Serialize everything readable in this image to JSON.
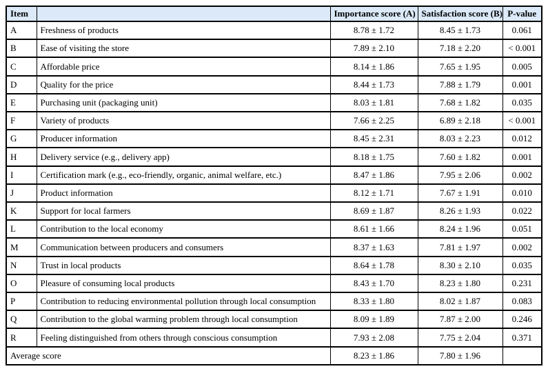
{
  "colors": {
    "header_bg": "#dbe9f8",
    "border": "#000000",
    "text": "#000000"
  },
  "table": {
    "headers": {
      "item": "Item",
      "description": "",
      "importance": "Importance score (A)",
      "satisfaction": "Satisfaction score (B)",
      "p_value": "P-value"
    },
    "rows": [
      {
        "item": "A",
        "description": "Freshness of products",
        "importance": "8.78 ± 1.72",
        "satisfaction": "8.45 ± 1.73",
        "p_value": "0.061"
      },
      {
        "item": "B",
        "description": "Ease of visiting the store",
        "importance": "7.89 ± 2.10",
        "satisfaction": "7.18 ± 2.20",
        "p_value": "< 0.001"
      },
      {
        "item": "C",
        "description": "Affordable price",
        "importance": "8.14 ± 1.86",
        "satisfaction": "7.65 ± 1.95",
        "p_value": "0.005"
      },
      {
        "item": "D",
        "description": "Quality for the price",
        "importance": "8.44 ± 1.73",
        "satisfaction": "7.88 ± 1.79",
        "p_value": "0.001"
      },
      {
        "item": "E",
        "description": "Purchasing unit (packaging unit)",
        "importance": "8.03 ± 1.81",
        "satisfaction": "7.68 ± 1.82",
        "p_value": "0.035"
      },
      {
        "item": "F",
        "description": "Variety of products",
        "importance": "7.66 ± 2.25",
        "satisfaction": "6.89 ± 2.18",
        "p_value": "< 0.001"
      },
      {
        "item": "G",
        "description": "Producer information",
        "importance": "8.45 ± 2.31",
        "satisfaction": "8.03 ± 2.23",
        "p_value": "0.012"
      },
      {
        "item": "H",
        "description": "Delivery service (e.g., delivery app)",
        "importance": "8.18 ± 1.75",
        "satisfaction": "7.60 ± 1.82",
        "p_value": "0.001"
      },
      {
        "item": "I",
        "description": "Certification mark (e.g., eco-friendly, organic, animal welfare, etc.)",
        "importance": "8.47 ± 1.86",
        "satisfaction": "7.95 ± 2.06",
        "p_value": "0.002"
      },
      {
        "item": "J",
        "description": "Product information",
        "importance": "8.12 ± 1.71",
        "satisfaction": "7.67 ± 1.91",
        "p_value": "0.010"
      },
      {
        "item": "K",
        "description": "Support for local farmers",
        "importance": "8.69 ± 1.87",
        "satisfaction": "8.26 ± 1.93",
        "p_value": "0.022"
      },
      {
        "item": "L",
        "description": "Contribution to the local economy",
        "importance": "8.61 ± 1.66",
        "satisfaction": "8.24 ± 1.96",
        "p_value": "0.051"
      },
      {
        "item": "M",
        "description": "Communication between producers and consumers",
        "importance": "8.37 ± 1.63",
        "satisfaction": "7.81 ± 1.97",
        "p_value": "0.002"
      },
      {
        "item": "N",
        "description": "Trust in local products",
        "importance": "8.64 ± 1.78",
        "satisfaction": "8.30 ± 2.10",
        "p_value": "0.035"
      },
      {
        "item": "O",
        "description": "Pleasure of consuming local products",
        "importance": "8.43 ± 1.70",
        "satisfaction": "8.23 ± 1.80",
        "p_value": "0.231"
      },
      {
        "item": "P",
        "description": "Contribution to reducing environmental pollution through local consumption",
        "importance": "8.33 ± 1.80",
        "satisfaction": "8.02 ± 1.87",
        "p_value": "0.083"
      },
      {
        "item": "Q",
        "description": "Contribution to the global warming problem through local consumption",
        "importance": "8.09 ± 1.89",
        "satisfaction": "7.87 ± 2.00",
        "p_value": "0.246"
      },
      {
        "item": "R",
        "description": "Feeling distinguished from others through conscious consumption",
        "importance": "7.93 ± 2.08",
        "satisfaction": "7.75 ± 2.04",
        "p_value": "0.371"
      }
    ],
    "average": {
      "label": "Average score",
      "importance": "8.23 ± 1.86",
      "satisfaction": "7.80 ± 1.96",
      "p_value": ""
    }
  }
}
